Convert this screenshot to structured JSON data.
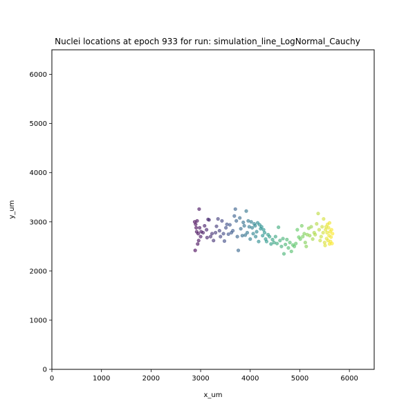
{
  "chart_data": {
    "type": "scatter",
    "title": "Nuclei locations at epoch 933 for run: simulation_line_LogNormal_Cauchy",
    "xlabel": "x_um",
    "ylabel": "y_um",
    "xlim": [
      0,
      6500
    ],
    "ylim": [
      0,
      6500
    ],
    "xticks": [
      0,
      1000,
      2000,
      3000,
      4000,
      5000,
      6000
    ],
    "yticks": [
      0,
      1000,
      2000,
      3000,
      4000,
      5000,
      6000
    ],
    "grid": false,
    "colormap": "viridis",
    "marker_alpha": 0.6,
    "points": [
      [
        2880,
        3000
      ],
      [
        2900,
        2950
      ],
      [
        2910,
        2880
      ],
      [
        2930,
        3020
      ],
      [
        2920,
        2800
      ],
      [
        2950,
        2760
      ],
      [
        2970,
        3260
      ],
      [
        2980,
        2880
      ],
      [
        3000,
        2700
      ],
      [
        2960,
        2620
      ],
      [
        2890,
        2420
      ],
      [
        2940,
        2550
      ],
      [
        3010,
        2800
      ],
      [
        3050,
        2780
      ],
      [
        3080,
        2920
      ],
      [
        3120,
        2840
      ],
      [
        3130,
        2680
      ],
      [
        3150,
        3050
      ],
      [
        3170,
        3040
      ],
      [
        3200,
        2700
      ],
      [
        3230,
        2760
      ],
      [
        3260,
        2620
      ],
      [
        3300,
        2780
      ],
      [
        3320,
        2910
      ],
      [
        3350,
        3060
      ],
      [
        3380,
        2820
      ],
      [
        3400,
        2700
      ],
      [
        3430,
        3020
      ],
      [
        3460,
        2760
      ],
      [
        3480,
        2610
      ],
      [
        3510,
        2880
      ],
      [
        3530,
        2950
      ],
      [
        3560,
        2750
      ],
      [
        3590,
        2940
      ],
      [
        3620,
        2780
      ],
      [
        3650,
        2820
      ],
      [
        3680,
        3120
      ],
      [
        3700,
        3260
      ],
      [
        3720,
        3020
      ],
      [
        3740,
        2700
      ],
      [
        3760,
        2420
      ],
      [
        3790,
        3080
      ],
      [
        3810,
        2860
      ],
      [
        3840,
        2720
      ],
      [
        3860,
        2990
      ],
      [
        3880,
        2920
      ],
      [
        3900,
        2730
      ],
      [
        3920,
        3220
      ],
      [
        3940,
        2780
      ],
      [
        3960,
        3020
      ],
      [
        3980,
        2900
      ],
      [
        4000,
        2650
      ],
      [
        4020,
        3000
      ],
      [
        4040,
        2880
      ],
      [
        4060,
        2760
      ],
      [
        4080,
        2960
      ],
      [
        4100,
        2920
      ],
      [
        4110,
        2700
      ],
      [
        4130,
        2800
      ],
      [
        4150,
        2980
      ],
      [
        4170,
        2600
      ],
      [
        4190,
        2940
      ],
      [
        4210,
        2860
      ],
      [
        4230,
        2900
      ],
      [
        4250,
        2720
      ],
      [
        4270,
        2840
      ],
      [
        4290,
        2780
      ],
      [
        4310,
        2650
      ],
      [
        4330,
        2600
      ],
      [
        4360,
        2740
      ],
      [
        4390,
        2700
      ],
      [
        4420,
        2550
      ],
      [
        4450,
        2640
      ],
      [
        4480,
        2580
      ],
      [
        4510,
        2700
      ],
      [
        4540,
        2560
      ],
      [
        4570,
        2890
      ],
      [
        4600,
        2620
      ],
      [
        4630,
        2500
      ],
      [
        4660,
        2660
      ],
      [
        4680,
        2350
      ],
      [
        4710,
        2540
      ],
      [
        4740,
        2640
      ],
      [
        4770,
        2470
      ],
      [
        4800,
        2580
      ],
      [
        4830,
        2400
      ],
      [
        4860,
        2530
      ],
      [
        4890,
        2500
      ],
      [
        4920,
        2560
      ],
      [
        4950,
        2840
      ],
      [
        4980,
        2690
      ],
      [
        5010,
        2650
      ],
      [
        5040,
        2920
      ],
      [
        5060,
        2700
      ],
      [
        5090,
        2760
      ],
      [
        5110,
        2580
      ],
      [
        5130,
        2500
      ],
      [
        5150,
        2740
      ],
      [
        5180,
        2870
      ],
      [
        5200,
        2720
      ],
      [
        5230,
        2900
      ],
      [
        5260,
        2650
      ],
      [
        5290,
        2780
      ],
      [
        5310,
        2740
      ],
      [
        5340,
        2960
      ],
      [
        5370,
        3170
      ],
      [
        5390,
        2840
      ],
      [
        5410,
        2620
      ],
      [
        5430,
        2700
      ],
      [
        5450,
        2900
      ],
      [
        5470,
        2780
      ],
      [
        5480,
        3060
      ],
      [
        5500,
        2580
      ],
      [
        5510,
        2520
      ],
      [
        5520,
        2840
      ],
      [
        5530,
        2900
      ],
      [
        5540,
        2660
      ],
      [
        5550,
        2780
      ],
      [
        5560,
        2950
      ],
      [
        5570,
        2620
      ],
      [
        5580,
        2880
      ],
      [
        5590,
        2720
      ],
      [
        5600,
        2550
      ],
      [
        5610,
        2800
      ],
      [
        5620,
        2600
      ],
      [
        5630,
        2690
      ],
      [
        5640,
        2840
      ],
      [
        5650,
        2560
      ],
      [
        5660,
        2760
      ],
      [
        5600,
        2980
      ]
    ]
  }
}
